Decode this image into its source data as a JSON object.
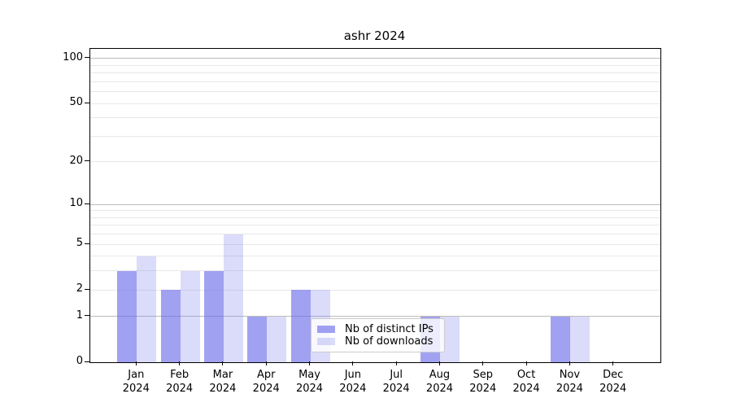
{
  "chart_data": {
    "type": "bar",
    "title": "ashr 2024",
    "x_axis": {
      "months": [
        "Jan",
        "Feb",
        "Mar",
        "Apr",
        "May",
        "Jun",
        "Jul",
        "Aug",
        "Sep",
        "Oct",
        "Nov",
        "Dec"
      ],
      "year": "2024"
    },
    "y_axis": {
      "scale": "log10(1+v)",
      "axis_max": 116,
      "ticks": [
        {
          "label": "100",
          "value": 100
        },
        {
          "label": "50",
          "value": 50
        },
        {
          "label": "20",
          "value": 20
        },
        {
          "label": "10",
          "value": 10
        },
        {
          "label": "5",
          "value": 5
        },
        {
          "label": "2",
          "value": 2
        },
        {
          "label": "1",
          "value": 1
        },
        {
          "label": "0",
          "value": 0
        }
      ],
      "major_grid_values": [
        1,
        10,
        100
      ],
      "minor_grid_values": [
        2,
        3,
        4,
        5,
        6,
        7,
        8,
        9,
        20,
        30,
        40,
        50,
        60,
        70,
        80,
        90
      ]
    },
    "series": [
      {
        "name": "Nb of distinct IPs",
        "color": "rgba(110,110,235,0.65)",
        "values": [
          3,
          2,
          3,
          1,
          2,
          0,
          0,
          1,
          0,
          0,
          1,
          0
        ]
      },
      {
        "name": "Nb of downloads",
        "color": "rgba(110,110,235,0.25)",
        "values": [
          4,
          3,
          6,
          1,
          2,
          0,
          0,
          1,
          0,
          0,
          1,
          0
        ]
      }
    ],
    "legend": {
      "position": "lower center"
    },
    "grid": true,
    "colors": {
      "major_grid": "#bbbbbb",
      "minor_grid": "#e8e8e8",
      "spine": "#000000",
      "text": "#000000",
      "legend_bg": "rgba(255,255,255,0.8)",
      "legend_border": "#cccccc"
    }
  }
}
